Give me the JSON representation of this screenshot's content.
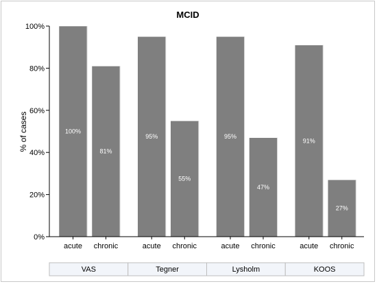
{
  "chart_data": {
    "type": "bar",
    "title": "MCID",
    "ylabel": "% of cases",
    "xlabel": "",
    "ylim": [
      0,
      100
    ],
    "yticks": [
      "0%",
      "20%",
      "40%",
      "60%",
      "80%",
      "100%"
    ],
    "ytick_values": [
      0,
      20,
      40,
      60,
      80,
      100
    ],
    "groups": [
      {
        "name": "VAS",
        "categories": [
          "acute",
          "chronic"
        ],
        "values": [
          100,
          81
        ],
        "labels": [
          "100%",
          "81%"
        ]
      },
      {
        "name": "Tegner",
        "categories": [
          "acute",
          "chronic"
        ],
        "values": [
          95,
          55
        ],
        "labels": [
          "95%",
          "55%"
        ]
      },
      {
        "name": "Lysholm",
        "categories": [
          "acute",
          "chronic"
        ],
        "values": [
          95,
          47
        ],
        "labels": [
          "95%",
          "47%"
        ]
      },
      {
        "name": "KOOS",
        "categories": [
          "acute",
          "chronic"
        ],
        "values": [
          91,
          27
        ],
        "labels": [
          "91%",
          "27%"
        ]
      }
    ],
    "bar_color": "#7f7f7f",
    "grid": false,
    "legend": "none"
  }
}
